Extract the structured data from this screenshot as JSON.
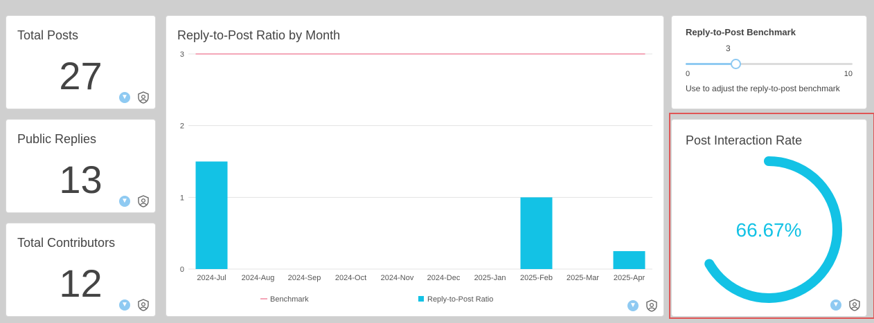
{
  "kpis": [
    {
      "title": "Total Posts",
      "value": "27"
    },
    {
      "title": "Public Replies",
      "value": "13"
    },
    {
      "title": "Total Contributors",
      "value": "12"
    }
  ],
  "icons": {
    "filter": "filter-icon",
    "shield": "shield-user-icon"
  },
  "colors": {
    "bar": "#13c2e5",
    "benchmark": "#f4a6b8",
    "gauge": "#13c2e5",
    "highlight": "#e05555"
  },
  "chart_data": {
    "type": "bar",
    "title": "Reply-to-Post Ratio by Month",
    "categories": [
      "2024-Jul",
      "2024-Aug",
      "2024-Sep",
      "2024-Oct",
      "2024-Nov",
      "2024-Dec",
      "2025-Jan",
      "2025-Feb",
      "2025-Mar",
      "2025-Apr"
    ],
    "series": [
      {
        "name": "Reply-to-Post Ratio",
        "values": [
          1.5,
          0,
          0,
          0,
          0,
          0,
          0,
          1.0,
          0,
          0.25
        ]
      },
      {
        "name": "Benchmark",
        "type": "line",
        "values": [
          3,
          3,
          3,
          3,
          3,
          3,
          3,
          3,
          3,
          3
        ]
      }
    ],
    "yticks": [
      "0",
      "1",
      "2",
      "3"
    ],
    "ylim": [
      0,
      3
    ],
    "grid": true,
    "legend_position": "bottom"
  },
  "benchmark": {
    "title": "Reply-to-Post Benchmark",
    "value": "3",
    "min": "0",
    "max": "10",
    "level": 0.3,
    "help": "Use to adjust the reply-to-post benchmark"
  },
  "gauge": {
    "title": "Post Interaction Rate",
    "value_text": "66.67%",
    "fraction": 0.6667
  }
}
